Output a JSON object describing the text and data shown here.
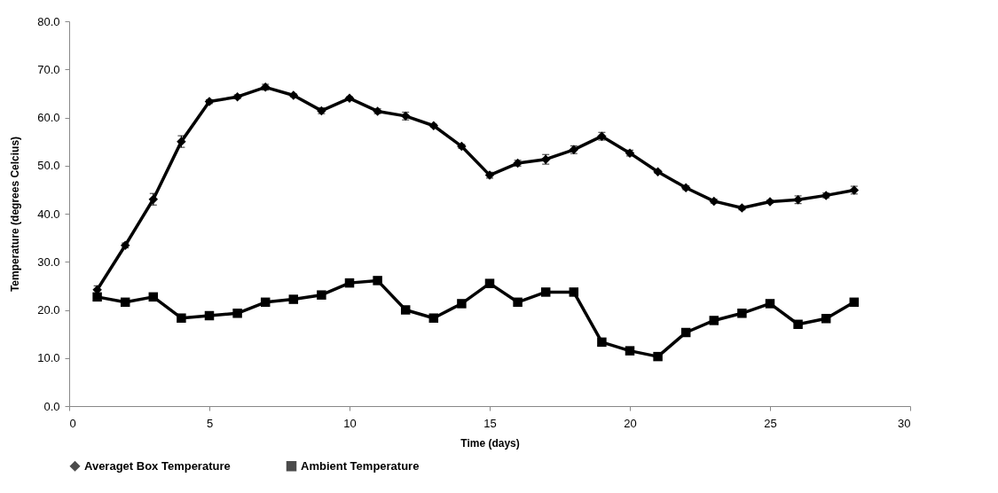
{
  "chart_data": {
    "type": "line",
    "xlabel": "Time (days)",
    "ylabel": "Temperature (degrees Celcius)",
    "x": [
      1,
      2,
      3,
      4,
      5,
      6,
      7,
      8,
      9,
      10,
      11,
      12,
      13,
      14,
      15,
      16,
      17,
      18,
      19,
      20,
      21,
      22,
      23,
      24,
      25,
      26,
      27,
      28
    ],
    "series": [
      {
        "name": "Averaget Box Temperature",
        "color": "#000000",
        "marker": "diamond",
        "values": [
          24.2,
          33.4,
          43.0,
          55.0,
          63.3,
          64.3,
          66.3,
          64.6,
          61.4,
          64.0,
          61.3,
          60.3,
          58.3,
          54.0,
          48.0,
          50.5,
          51.3,
          53.3,
          56.1,
          52.6,
          48.7,
          45.4,
          42.6,
          41.2,
          42.5,
          42.9,
          43.8,
          44.9
        ],
        "errors": [
          0.8,
          0.5,
          1.2,
          1.2,
          0.4,
          0.4,
          0.6,
          0.3,
          0.6,
          0.3,
          0.5,
          0.8,
          0.3,
          0.4,
          0.6,
          0.6,
          1.0,
          0.8,
          0.8,
          0.6,
          0.3,
          0.4,
          0.4,
          0.4,
          0.3,
          0.8,
          0.5,
          0.8
        ]
      },
      {
        "name": "Ambient Temperature",
        "color": "#000000",
        "marker": "square",
        "values": [
          22.7,
          21.6,
          22.7,
          18.3,
          18.8,
          19.3,
          21.6,
          22.2,
          23.1,
          25.6,
          26.1,
          20.0,
          18.3,
          21.3,
          25.5,
          21.6,
          23.7,
          23.7,
          13.3,
          11.5,
          10.3,
          15.3,
          17.8,
          19.3,
          21.3,
          17.0,
          18.2,
          21.6
        ]
      }
    ],
    "xlim": [
      0,
      30
    ],
    "xticks": [
      0,
      5,
      10,
      15,
      20,
      25,
      30
    ],
    "ylim": [
      0,
      80
    ],
    "yticks": [
      {
        "value": 0,
        "label": "0.0"
      },
      {
        "value": 10,
        "label": "10.0"
      },
      {
        "value": 20,
        "label": "20.0"
      },
      {
        "value": 30,
        "label": "30.0"
      },
      {
        "value": 40,
        "label": "40.0"
      },
      {
        "value": 50,
        "label": "50.0"
      },
      {
        "value": 60,
        "label": "60.0"
      },
      {
        "value": 70,
        "label": "70.0"
      },
      {
        "value": 80,
        "label": "80.0"
      }
    ],
    "grid": false,
    "legend": "bottom",
    "line_style": "solid"
  }
}
